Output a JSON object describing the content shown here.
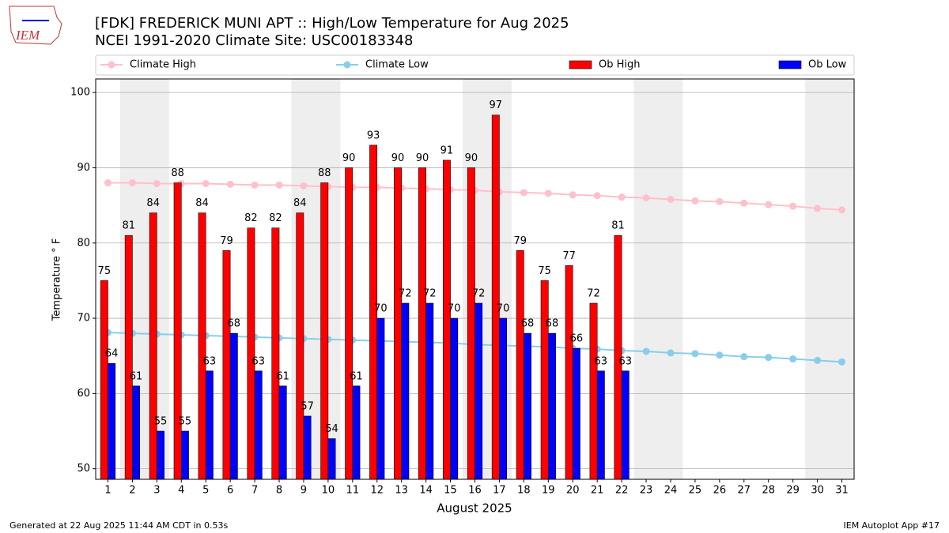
{
  "logo": "IEM",
  "footer_left": "Generated at 22 Aug 2025 11:44 AM CDT in 0.53s",
  "footer_right": "IEM Autoplot App #17",
  "chart_data": {
    "type": "bar",
    "title": "[FDK] FREDERICK MUNI APT :: High/Low Temperature for Aug 2025",
    "subtitle": "NCEI 1991-2020 Climate Site: USC00183348",
    "x_label": "August 2025",
    "y_label": "Temperature ° F",
    "categories": [
      "1",
      "2",
      "3",
      "4",
      "5",
      "6",
      "7",
      "8",
      "9",
      "10",
      "11",
      "12",
      "13",
      "14",
      "15",
      "16",
      "17",
      "18",
      "19",
      "20",
      "21",
      "22",
      "23",
      "24",
      "25",
      "26",
      "27",
      "28",
      "29",
      "30",
      "31"
    ],
    "xlim": [
      0.5,
      31.5
    ],
    "ylim": [
      48.6,
      101.8
    ],
    "yticks": [
      50,
      60,
      70,
      80,
      90,
      100
    ],
    "grid": true,
    "series": [
      {
        "name": "Climate High",
        "type": "line",
        "color": "#ffc0cb",
        "values": [
          88.0,
          88.0,
          87.9,
          87.9,
          87.9,
          87.8,
          87.7,
          87.7,
          87.6,
          87.5,
          87.4,
          87.4,
          87.3,
          87.2,
          87.1,
          87.0,
          86.8,
          86.7,
          86.6,
          86.4,
          86.3,
          86.1,
          86.0,
          85.8,
          85.6,
          85.5,
          85.3,
          85.1,
          84.9,
          84.6,
          84.4
        ]
      },
      {
        "name": "Climate Low",
        "type": "line",
        "color": "#87ceeb",
        "values": [
          68.1,
          68.0,
          67.9,
          67.8,
          67.7,
          67.6,
          67.5,
          67.4,
          67.3,
          67.2,
          67.1,
          67.0,
          66.9,
          66.8,
          66.7,
          66.5,
          66.4,
          66.3,
          66.2,
          66.0,
          65.9,
          65.7,
          65.6,
          65.4,
          65.3,
          65.1,
          64.9,
          64.8,
          64.6,
          64.4,
          64.2
        ]
      },
      {
        "name": "Ob High",
        "type": "bar",
        "color": "#ff0000",
        "values": [
          75,
          81,
          84,
          88,
          84,
          79,
          82,
          82,
          84,
          88,
          90,
          93,
          90,
          90,
          91,
          90,
          97,
          79,
          75,
          77,
          72,
          81,
          null,
          null,
          null,
          null,
          null,
          null,
          null,
          null,
          null
        ]
      },
      {
        "name": "Ob Low",
        "type": "bar",
        "color": "#0000ff",
        "values": [
          64,
          61,
          55,
          55,
          63,
          68,
          63,
          61,
          57,
          54,
          61,
          70,
          72,
          72,
          70,
          72,
          70,
          68,
          68,
          66,
          63,
          63,
          null,
          null,
          null,
          null,
          null,
          null,
          null,
          null,
          null
        ]
      }
    ]
  }
}
